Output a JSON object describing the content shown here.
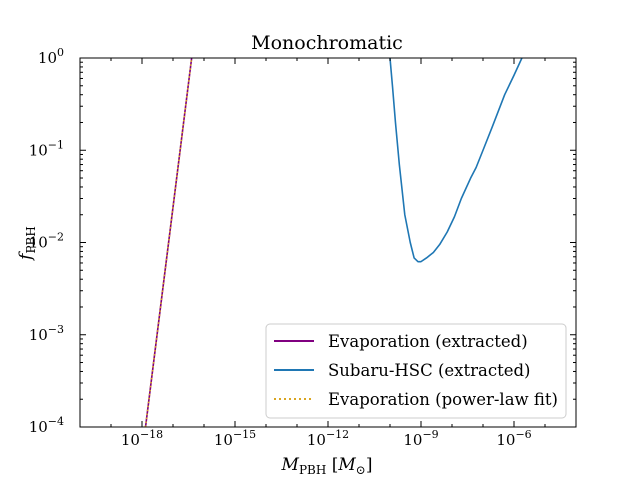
{
  "chart_data": {
    "type": "line",
    "title": "Monochromatic",
    "xlabel": {
      "main": "M",
      "sub": "PBH",
      "unit_main": "M",
      "unit_sub": "⊙"
    },
    "ylabel": {
      "main": "f",
      "sub": "PBH"
    },
    "x_scale": "log",
    "y_scale": "log",
    "xlim": [
      1e-20,
      0.0001
    ],
    "ylim": [
      0.0001,
      1
    ],
    "x_ticks": [
      {
        "value": 1e-18,
        "base": "10",
        "exp": "−18"
      },
      {
        "value": 1e-15,
        "base": "10",
        "exp": "−15"
      },
      {
        "value": 1e-12,
        "base": "10",
        "exp": "−12"
      },
      {
        "value": 1e-09,
        "base": "10",
        "exp": "−9"
      },
      {
        "value": 1e-06,
        "base": "10",
        "exp": "−6"
      }
    ],
    "y_ticks": [
      {
        "value": 0.0001,
        "base": "10",
        "exp": "−4"
      },
      {
        "value": 0.001,
        "base": "10",
        "exp": "−3"
      },
      {
        "value": 0.01,
        "base": "10",
        "exp": "−2"
      },
      {
        "value": 0.1,
        "base": "10",
        "exp": "−1"
      },
      {
        "value": 1,
        "base": "10",
        "exp": "0"
      }
    ],
    "legend_position": "lower-right",
    "series": [
      {
        "name": "Evaporation (extracted)",
        "color": "#800080",
        "style": "solid",
        "points": [
          [
            1.3e-18,
            0.0001
          ],
          [
            4e-17,
            1.0
          ]
        ]
      },
      {
        "name": "Subaru-HSC (extracted)",
        "color": "#1f77b4",
        "style": "solid",
        "points": [
          [
            1e-10,
            1.0
          ],
          [
            1.2e-10,
            0.5
          ],
          [
            1.5e-10,
            0.2
          ],
          [
            2e-10,
            0.07
          ],
          [
            3e-10,
            0.02
          ],
          [
            4.5e-10,
            0.01
          ],
          [
            6e-10,
            0.0068
          ],
          [
            8e-10,
            0.0062
          ],
          [
            1e-09,
            0.0062
          ],
          [
            1.5e-09,
            0.0068
          ],
          [
            2.5e-09,
            0.0078
          ],
          [
            4e-09,
            0.0095
          ],
          [
            7e-09,
            0.013
          ],
          [
            1.2e-08,
            0.019
          ],
          [
            2e-08,
            0.03
          ],
          [
            4e-08,
            0.05
          ],
          [
            6e-08,
            0.065
          ],
          [
            1e-07,
            0.1
          ],
          [
            2e-07,
            0.18
          ],
          [
            5e-07,
            0.4
          ],
          [
            1e-06,
            0.65
          ],
          [
            1.8e-06,
            1.0
          ]
        ]
      },
      {
        "name": "Evaporation (power-law fit)",
        "color": "#daa520",
        "style": "dotted",
        "points": [
          [
            1.3e-18,
            0.0001
          ],
          [
            4e-17,
            1.0
          ]
        ]
      }
    ]
  }
}
